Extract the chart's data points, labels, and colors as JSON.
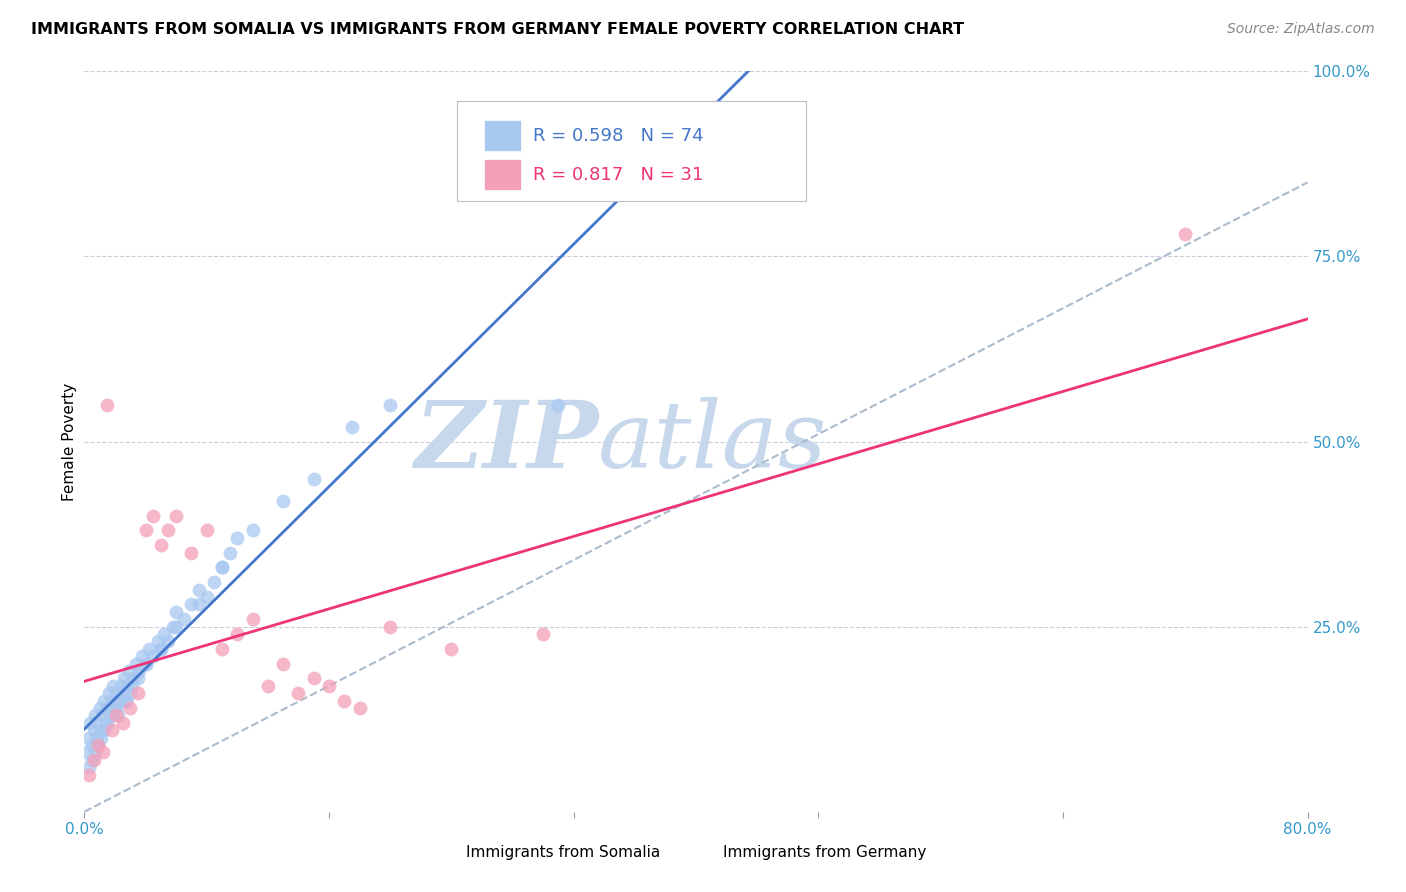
{
  "title": "IMMIGRANTS FROM SOMALIA VS IMMIGRANTS FROM GERMANY FEMALE POVERTY CORRELATION CHART",
  "source": "Source: ZipAtlas.com",
  "ylabel": "Female Poverty",
  "legend_somalia": "Immigrants from Somalia",
  "legend_germany": "Immigrants from Germany",
  "r_somalia": 0.598,
  "n_somalia": 74,
  "r_germany": 0.817,
  "n_germany": 31,
  "xlim": [
    0.0,
    0.8
  ],
  "ylim": [
    0.0,
    1.0
  ],
  "color_somalia": "#A8C8F0",
  "color_germany": "#F4A0B8",
  "color_line_somalia": "#4477CC",
  "color_line_germany": "#EE3377",
  "color_diag": "#AABBCC",
  "watermark_zip": "ZIP",
  "watermark_atlas": "atlas",
  "watermark_color": "#C8D8EC",
  "background": "#FFFFFF",
  "grid_color": "#CCCCDD",
  "somalia_x": [
    0.002,
    0.003,
    0.004,
    0.005,
    0.006,
    0.007,
    0.008,
    0.009,
    0.01,
    0.011,
    0.012,
    0.013,
    0.014,
    0.015,
    0.016,
    0.017,
    0.018,
    0.019,
    0.02,
    0.021,
    0.022,
    0.023,
    0.024,
    0.025,
    0.026,
    0.027,
    0.028,
    0.029,
    0.03,
    0.032,
    0.034,
    0.036,
    0.038,
    0.04,
    0.042,
    0.045,
    0.048,
    0.05,
    0.052,
    0.055,
    0.058,
    0.06,
    0.065,
    0.07,
    0.075,
    0.08,
    0.085,
    0.09,
    0.095,
    0.1,
    0.003,
    0.005,
    0.007,
    0.009,
    0.011,
    0.013,
    0.015,
    0.018,
    0.021,
    0.024,
    0.027,
    0.031,
    0.035,
    0.04,
    0.05,
    0.06,
    0.075,
    0.09,
    0.11,
    0.13,
    0.15,
    0.175,
    0.2,
    0.31
  ],
  "somalia_y": [
    0.08,
    0.1,
    0.12,
    0.09,
    0.11,
    0.13,
    0.1,
    0.12,
    0.14,
    0.11,
    0.13,
    0.15,
    0.12,
    0.14,
    0.16,
    0.13,
    0.15,
    0.17,
    0.14,
    0.16,
    0.13,
    0.15,
    0.17,
    0.16,
    0.18,
    0.15,
    0.17,
    0.19,
    0.16,
    0.18,
    0.2,
    0.19,
    0.21,
    0.2,
    0.22,
    0.21,
    0.23,
    0.22,
    0.24,
    0.23,
    0.25,
    0.27,
    0.26,
    0.28,
    0.3,
    0.29,
    0.31,
    0.33,
    0.35,
    0.37,
    0.06,
    0.07,
    0.08,
    0.09,
    0.1,
    0.11,
    0.12,
    0.13,
    0.14,
    0.16,
    0.15,
    0.17,
    0.18,
    0.2,
    0.22,
    0.25,
    0.28,
    0.33,
    0.38,
    0.42,
    0.45,
    0.52,
    0.55,
    0.55
  ],
  "germany_x": [
    0.003,
    0.006,
    0.009,
    0.012,
    0.015,
    0.018,
    0.021,
    0.025,
    0.03,
    0.035,
    0.04,
    0.045,
    0.05,
    0.055,
    0.06,
    0.07,
    0.08,
    0.09,
    0.1,
    0.11,
    0.12,
    0.13,
    0.14,
    0.15,
    0.16,
    0.17,
    0.18,
    0.2,
    0.24,
    0.3,
    0.72
  ],
  "germany_y": [
    0.05,
    0.07,
    0.09,
    0.08,
    0.55,
    0.11,
    0.13,
    0.12,
    0.14,
    0.16,
    0.38,
    0.4,
    0.36,
    0.38,
    0.4,
    0.35,
    0.38,
    0.22,
    0.24,
    0.26,
    0.17,
    0.2,
    0.16,
    0.18,
    0.17,
    0.15,
    0.14,
    0.25,
    0.22,
    0.24,
    0.78
  ],
  "title_fontsize": 11.5,
  "axis_label_fontsize": 11,
  "tick_fontsize": 11,
  "source_fontsize": 10
}
